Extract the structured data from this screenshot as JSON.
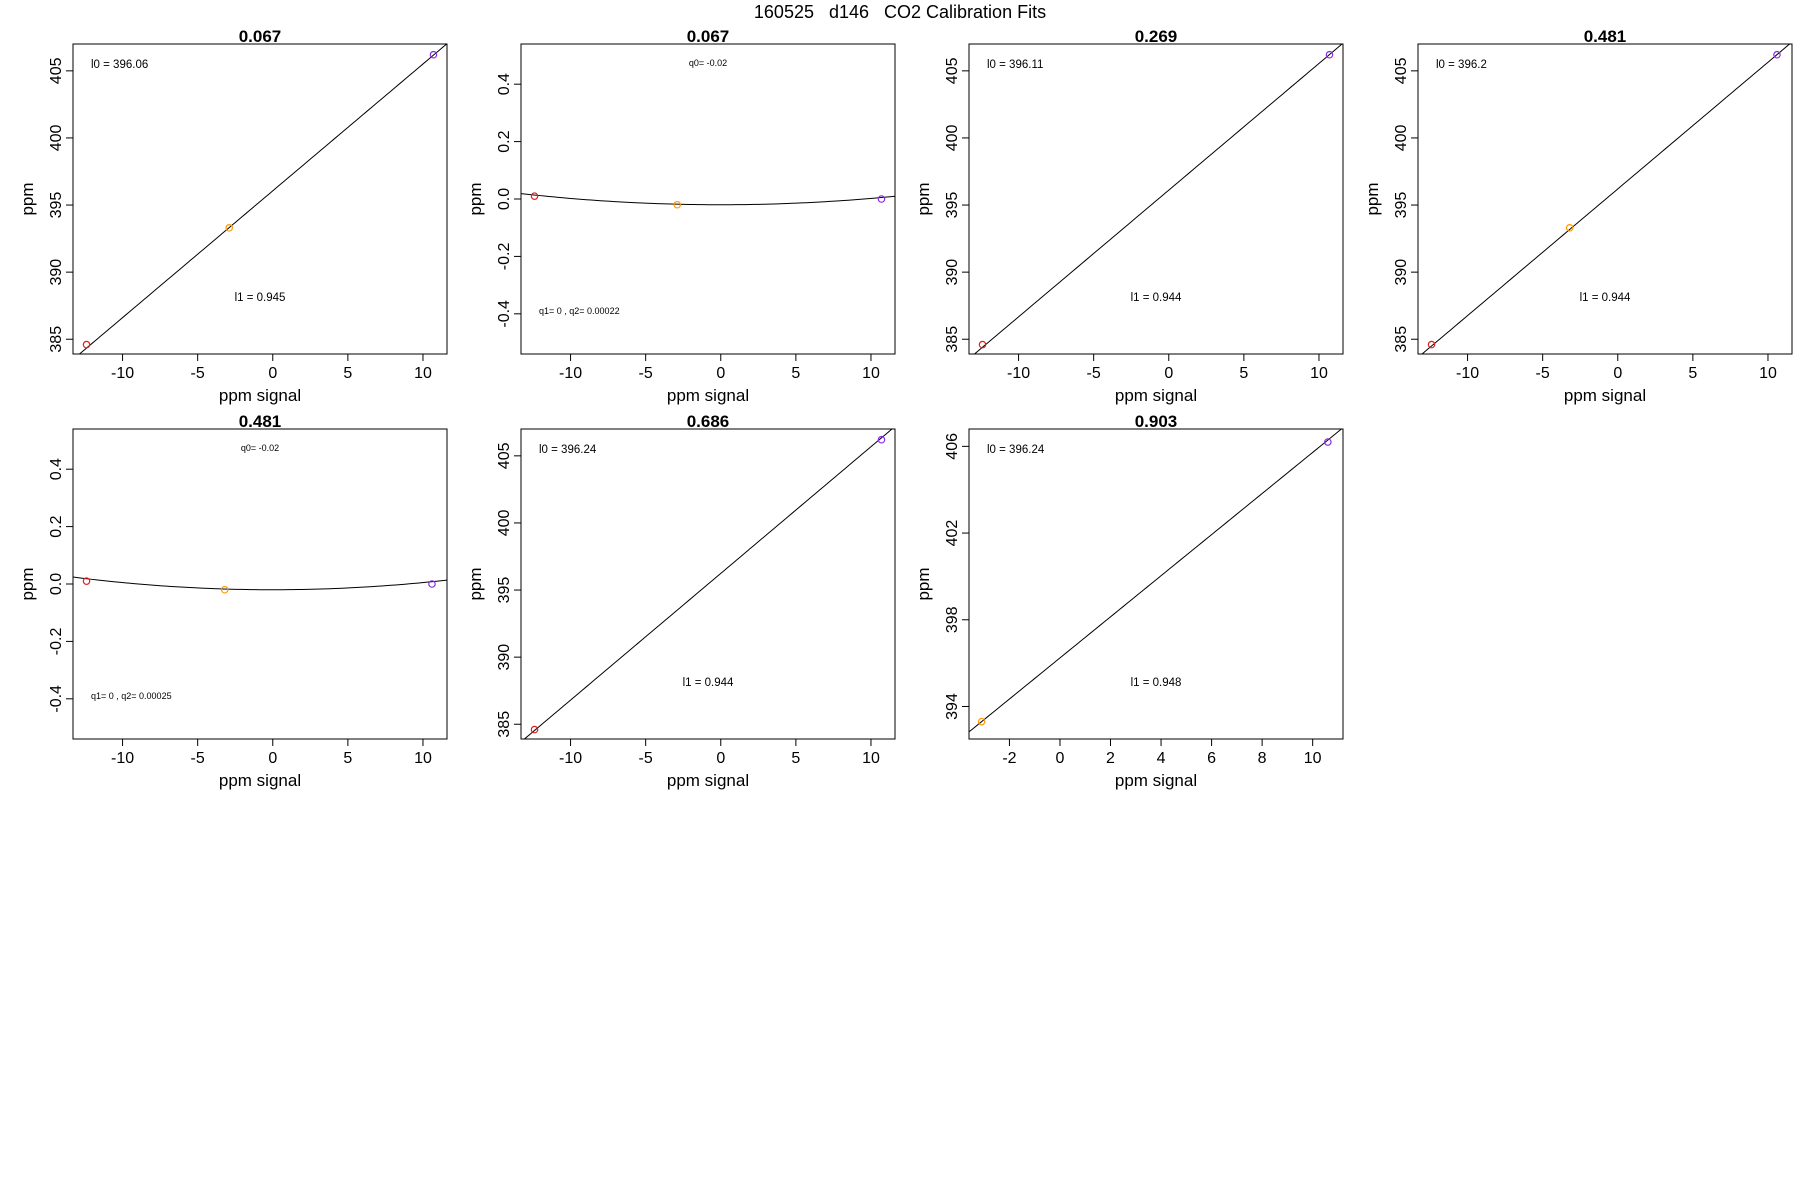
{
  "figure": {
    "title": "160525   d146   CO2 Calibration Fits"
  },
  "colors": {
    "red": "#e41a1c",
    "orange": "#ff9900",
    "purple": "#8a2be2",
    "line": "#000000"
  },
  "chart_data": [
    {
      "type": "scatter",
      "fit": "linear",
      "title": "0.067",
      "xlabel": "ppm signal",
      "ylabel": "ppm",
      "xlim": [
        -13.3,
        11.6
      ],
      "ylim": [
        383.9,
        407.0
      ],
      "xticks": [
        -10,
        -5,
        0,
        5,
        10
      ],
      "yticks": [
        385,
        390,
        395,
        400,
        405
      ],
      "points": [
        {
          "x": -12.4,
          "y": 384.6,
          "color": "red"
        },
        {
          "x": -2.9,
          "y": 393.3,
          "color": "orange"
        },
        {
          "x": 10.7,
          "y": 406.2,
          "color": "purple"
        }
      ],
      "coef": {
        "l0": 396.06,
        "l1": 0.945
      },
      "annotations": {
        "top": "l0 =  396.06",
        "bottom": "l1 =  0.945"
      }
    },
    {
      "type": "scatter",
      "fit": "quadratic",
      "title": "0.067",
      "xlabel": "ppm signal",
      "ylabel": "ppm",
      "xlim": [
        -13.3,
        11.6
      ],
      "ylim": [
        -0.54,
        0.54
      ],
      "xticks": [
        -10,
        -5,
        0,
        5,
        10
      ],
      "yticks": [
        -0.4,
        -0.2,
        0.0,
        0.2,
        0.4
      ],
      "points": [
        {
          "x": -12.4,
          "y": 0.01,
          "color": "red"
        },
        {
          "x": -2.9,
          "y": -0.02,
          "color": "orange"
        },
        {
          "x": 10.7,
          "y": 0.0,
          "color": "purple"
        }
      ],
      "coef": {
        "q0": -0.02,
        "q1": 0,
        "q2": 0.00022
      },
      "annotations": {
        "top": "q0= -0.02",
        "bottom": "q1= 0 , q2= 0.00022"
      }
    },
    {
      "type": "scatter",
      "fit": "linear",
      "title": "0.269",
      "xlabel": "ppm signal",
      "ylabel": "ppm",
      "xlim": [
        -13.3,
        11.6
      ],
      "ylim": [
        383.9,
        407.0
      ],
      "xticks": [
        -10,
        -5,
        0,
        5,
        10
      ],
      "yticks": [
        385,
        390,
        395,
        400,
        405
      ],
      "points": [
        {
          "x": -12.4,
          "y": 384.6,
          "color": "red"
        },
        {
          "x": 10.7,
          "y": 406.2,
          "color": "purple"
        }
      ],
      "coef": {
        "l0": 396.11,
        "l1": 0.944
      },
      "annotations": {
        "top": "l0 =  396.11",
        "bottom": "l1 =  0.944"
      }
    },
    {
      "type": "scatter",
      "fit": "linear",
      "title": "0.481",
      "xlabel": "ppm signal",
      "ylabel": "ppm",
      "xlim": [
        -13.3,
        11.6
      ],
      "ylim": [
        383.9,
        407.0
      ],
      "xticks": [
        -10,
        -5,
        0,
        5,
        10
      ],
      "yticks": [
        385,
        390,
        395,
        400,
        405
      ],
      "points": [
        {
          "x": -12.4,
          "y": 384.6,
          "color": "red"
        },
        {
          "x": -3.2,
          "y": 393.3,
          "color": "orange"
        },
        {
          "x": 10.6,
          "y": 406.2,
          "color": "purple"
        }
      ],
      "coef": {
        "l0": 396.2,
        "l1": 0.944
      },
      "annotations": {
        "top": "l0 =  396.2",
        "bottom": "l1 =  0.944"
      }
    },
    {
      "type": "scatter",
      "fit": "quadratic",
      "title": "0.481",
      "xlabel": "ppm signal",
      "ylabel": "ppm",
      "xlim": [
        -13.3,
        11.6
      ],
      "ylim": [
        -0.54,
        0.54
      ],
      "xticks": [
        -10,
        -5,
        0,
        5,
        10
      ],
      "yticks": [
        -0.4,
        -0.2,
        0.0,
        0.2,
        0.4
      ],
      "points": [
        {
          "x": -12.4,
          "y": 0.01,
          "color": "red"
        },
        {
          "x": -3.2,
          "y": -0.02,
          "color": "orange"
        },
        {
          "x": 10.6,
          "y": 0.0,
          "color": "purple"
        }
      ],
      "coef": {
        "q0": -0.02,
        "q1": 0,
        "q2": 0.00025
      },
      "annotations": {
        "top": "q0= -0.02",
        "bottom": "q1= 0 , q2= 0.00025"
      }
    },
    {
      "type": "scatter",
      "fit": "linear",
      "title": "0.686",
      "xlabel": "ppm signal",
      "ylabel": "ppm",
      "xlim": [
        -13.3,
        11.6
      ],
      "ylim": [
        383.9,
        407.0
      ],
      "xticks": [
        -10,
        -5,
        0,
        5,
        10
      ],
      "yticks": [
        385,
        390,
        395,
        400,
        405
      ],
      "points": [
        {
          "x": -12.4,
          "y": 384.6,
          "color": "red"
        },
        {
          "x": 10.7,
          "y": 406.2,
          "color": "purple"
        }
      ],
      "coef": {
        "l0": 396.24,
        "l1": 0.944
      },
      "annotations": {
        "top": "l0 =  396.24",
        "bottom": "l1 =  0.944"
      }
    },
    {
      "type": "scatter",
      "fit": "linear",
      "title": "0.903",
      "xlabel": "ppm signal",
      "ylabel": "ppm",
      "xlim": [
        -3.6,
        11.2
      ],
      "ylim": [
        392.5,
        406.8
      ],
      "xticks": [
        -2,
        0,
        2,
        4,
        6,
        8,
        10
      ],
      "yticks": [
        394,
        398,
        402,
        406
      ],
      "points": [
        {
          "x": -3.1,
          "y": 393.3,
          "color": "orange"
        },
        {
          "x": 10.6,
          "y": 406.2,
          "color": "purple"
        }
      ],
      "coef": {
        "l0": 396.24,
        "l1": 0.948
      },
      "annotations": {
        "top": "l0 =  396.24",
        "bottom": "l1 =  0.948"
      }
    }
  ]
}
